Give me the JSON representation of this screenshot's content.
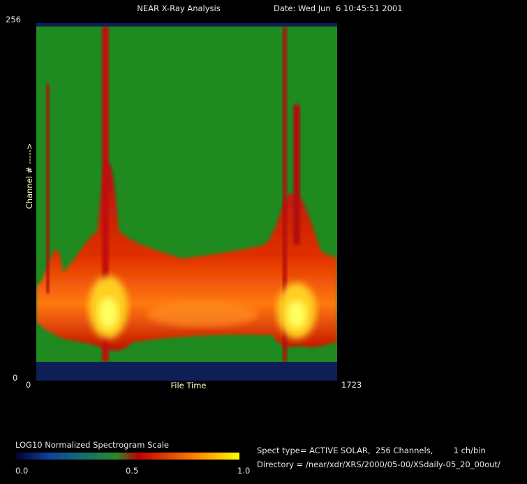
{
  "header": {
    "title": "NEAR X-Ray Analysis",
    "date": "Date: Wed Jun  6 10:45:51 2001"
  },
  "plot": {
    "y_axis_label": "Channel # ----->",
    "y_max": "256",
    "y_min": "0",
    "x_axis_label": "File Time",
    "x_min": "0",
    "x_max": "1723"
  },
  "colorbar": {
    "title": "LOG10 Normalized Spectrogram Scale",
    "ticks": [
      "0.0",
      "0.5",
      "1.0"
    ]
  },
  "info": {
    "spect_type": "Spect type= ACTIVE SOLAR,  256 Channels,        1 ch/bin",
    "directory": "Directory = /near/xdr/XRS/2000/05-00/XSdaily-05_20_00out/"
  }
}
